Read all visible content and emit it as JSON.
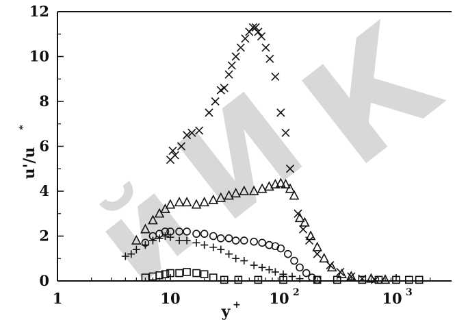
{
  "chart_data": {
    "type": "scatter",
    "title": "",
    "xlabel": "y",
    "xlabel_sup": "+",
    "ylabel": "u'/u",
    "ylabel_sup": "*",
    "xscale": "log",
    "xlim": [
      1,
      2000
    ],
    "ylim": [
      0,
      12
    ],
    "grid": false,
    "legend": "none",
    "x_ticks": [
      {
        "value": 1,
        "label": "1",
        "sup": ""
      },
      {
        "value": 10,
        "label": "10",
        "sup": ""
      },
      {
        "value": 100,
        "label": "10",
        "sup": "2"
      },
      {
        "value": 1000,
        "label": "10",
        "sup": "3"
      }
    ],
    "y_ticks": [
      {
        "value": 0,
        "label": "0"
      },
      {
        "value": 2,
        "label": "2"
      },
      {
        "value": 4,
        "label": "4"
      },
      {
        "value": 6,
        "label": "6"
      },
      {
        "value": 8,
        "label": "8"
      },
      {
        "value": 10,
        "label": "10"
      },
      {
        "value": 12,
        "label": "12"
      }
    ],
    "series": [
      {
        "marker": "x",
        "points": [
          [
            10,
            5.4
          ],
          [
            10.5,
            5.8
          ],
          [
            11,
            5.6
          ],
          [
            12.5,
            6.0
          ],
          [
            14,
            6.5
          ],
          [
            15.5,
            6.6
          ],
          [
            18,
            6.7
          ],
          [
            22,
            7.5
          ],
          [
            25,
            8.0
          ],
          [
            28,
            8.5
          ],
          [
            30,
            8.6
          ],
          [
            33,
            9.2
          ],
          [
            35,
            9.6
          ],
          [
            38,
            10.0
          ],
          [
            42,
            10.4
          ],
          [
            46,
            10.8
          ],
          [
            50,
            11.1
          ],
          [
            54,
            11.3
          ],
          [
            57,
            11.3
          ],
          [
            60,
            11.1
          ],
          [
            64,
            10.9
          ],
          [
            70,
            10.4
          ],
          [
            76,
            9.9
          ],
          [
            85,
            9.1
          ],
          [
            95,
            7.5
          ],
          [
            105,
            6.6
          ],
          [
            115,
            5.0
          ],
          [
            135,
            3.0
          ],
          [
            150,
            2.3
          ],
          [
            170,
            1.8
          ],
          [
            200,
            1.2
          ],
          [
            260,
            0.7
          ],
          [
            320,
            0.4
          ],
          [
            400,
            0.2
          ],
          [
            500,
            0.1
          ],
          [
            650,
            0.05
          ]
        ]
      },
      {
        "marker": "triangle",
        "points": [
          [
            5,
            1.8
          ],
          [
            6,
            2.3
          ],
          [
            7,
            2.7
          ],
          [
            8,
            3.0
          ],
          [
            9,
            3.2
          ],
          [
            10,
            3.4
          ],
          [
            12,
            3.5
          ],
          [
            14,
            3.5
          ],
          [
            17,
            3.4
          ],
          [
            20,
            3.5
          ],
          [
            24,
            3.6
          ],
          [
            28,
            3.7
          ],
          [
            33,
            3.8
          ],
          [
            38,
            3.9
          ],
          [
            45,
            4.0
          ],
          [
            55,
            4.0
          ],
          [
            65,
            4.1
          ],
          [
            75,
            4.2
          ],
          [
            85,
            4.3
          ],
          [
            95,
            4.35
          ],
          [
            105,
            4.3
          ],
          [
            115,
            4.1
          ],
          [
            125,
            3.8
          ],
          [
            140,
            2.8
          ],
          [
            155,
            2.6
          ],
          [
            175,
            2.0
          ],
          [
            200,
            1.5
          ],
          [
            230,
            1.0
          ],
          [
            270,
            0.6
          ],
          [
            330,
            0.3
          ],
          [
            400,
            0.2
          ],
          [
            600,
            0.1
          ],
          [
            800,
            0.05
          ]
        ]
      },
      {
        "marker": "circle",
        "points": [
          [
            6,
            1.7
          ],
          [
            7,
            2.0
          ],
          [
            8,
            2.1
          ],
          [
            9,
            2.2
          ],
          [
            10,
            2.2
          ],
          [
            12,
            2.2
          ],
          [
            14,
            2.2
          ],
          [
            17,
            2.1
          ],
          [
            20,
            2.1
          ],
          [
            24,
            2.0
          ],
          [
            28,
            1.9
          ],
          [
            33,
            1.9
          ],
          [
            38,
            1.8
          ],
          [
            45,
            1.8
          ],
          [
            55,
            1.75
          ],
          [
            65,
            1.7
          ],
          [
            75,
            1.6
          ],
          [
            85,
            1.55
          ],
          [
            95,
            1.45
          ],
          [
            110,
            1.2
          ],
          [
            125,
            0.9
          ],
          [
            140,
            0.6
          ],
          [
            160,
            0.35
          ],
          [
            180,
            0.15
          ],
          [
            200,
            0.05
          ]
        ]
      },
      {
        "marker": "plus",
        "points": [
          [
            4,
            1.1
          ],
          [
            4.5,
            1.2
          ],
          [
            5,
            1.4
          ],
          [
            6,
            1.6
          ],
          [
            7,
            1.8
          ],
          [
            8,
            1.9
          ],
          [
            9,
            2.0
          ],
          [
            10,
            1.95
          ],
          [
            12,
            1.8
          ],
          [
            14,
            1.8
          ],
          [
            17,
            1.7
          ],
          [
            20,
            1.6
          ],
          [
            24,
            1.5
          ],
          [
            28,
            1.4
          ],
          [
            33,
            1.2
          ],
          [
            38,
            1.0
          ],
          [
            45,
            0.9
          ],
          [
            55,
            0.7
          ],
          [
            65,
            0.6
          ],
          [
            75,
            0.5
          ],
          [
            85,
            0.4
          ],
          [
            100,
            0.3
          ],
          [
            120,
            0.2
          ],
          [
            140,
            0.1
          ]
        ]
      },
      {
        "marker": "square",
        "points": [
          [
            6,
            0.15
          ],
          [
            7,
            0.2
          ],
          [
            8,
            0.25
          ],
          [
            9,
            0.3
          ],
          [
            10,
            0.35
          ],
          [
            12,
            0.35
          ],
          [
            14,
            0.4
          ],
          [
            17,
            0.35
          ],
          [
            20,
            0.3
          ],
          [
            24,
            0.15
          ],
          [
            30,
            0.05
          ],
          [
            40,
            0.05
          ],
          [
            60,
            0.05
          ],
          [
            100,
            0.05
          ],
          [
            200,
            0.05
          ],
          [
            300,
            0.05
          ],
          [
            500,
            0.05
          ],
          [
            700,
            0.05
          ],
          [
            1000,
            0.05
          ],
          [
            1300,
            0.05
          ],
          [
            1600,
            0.05
          ]
        ]
      }
    ]
  }
}
